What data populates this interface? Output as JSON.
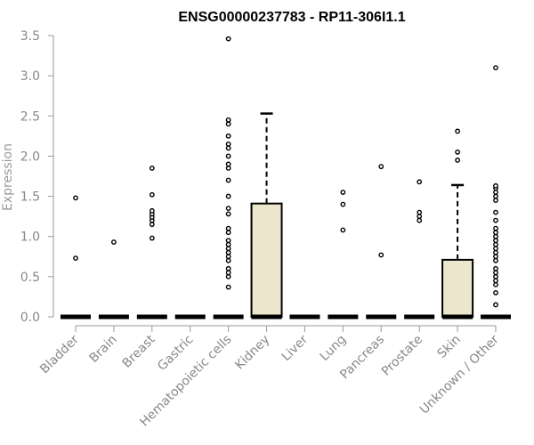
{
  "chart_data": {
    "type": "box",
    "title": "ENSG00000237783 - RP11-306I1.1",
    "ylabel": "Expression",
    "ylim": [
      0,
      3.5
    ],
    "yticks": [
      "0.0",
      "0.5",
      "1.0",
      "1.5",
      "2.0",
      "2.5",
      "3.0",
      "3.5"
    ],
    "grid": false,
    "colors": {
      "box_fill": "#ece6cc",
      "axis": "#999999",
      "tick_label": "#888888"
    },
    "categories": [
      {
        "name": "Bladder",
        "median": 0,
        "q1": 0,
        "q3": 0,
        "whisker_low": 0,
        "whisker_high": 0,
        "outliers": [
          0.73,
          1.48
        ]
      },
      {
        "name": "Brain",
        "median": 0,
        "q1": 0,
        "q3": 0,
        "whisker_low": 0,
        "whisker_high": 0,
        "outliers": [
          0.93
        ]
      },
      {
        "name": "Breast",
        "median": 0,
        "q1": 0,
        "q3": 0,
        "whisker_low": 0,
        "whisker_high": 0,
        "outliers": [
          0.98,
          1.15,
          1.2,
          1.24,
          1.28,
          1.32,
          1.52,
          1.85
        ]
      },
      {
        "name": "Gastric",
        "median": 0,
        "q1": 0,
        "q3": 0,
        "whisker_low": 0,
        "whisker_high": 0,
        "outliers": []
      },
      {
        "name": "Hematopoietic cells",
        "median": 0,
        "q1": 0,
        "q3": 0,
        "whisker_low": 0,
        "whisker_high": 0,
        "outliers": [
          0.37,
          0.5,
          0.55,
          0.6,
          0.7,
          0.75,
          0.8,
          0.85,
          0.9,
          0.95,
          1.05,
          1.1,
          1.28,
          1.35,
          1.5,
          1.7,
          1.85,
          1.9,
          2.0,
          2.1,
          2.15,
          2.25,
          2.4,
          2.45,
          3.46
        ]
      },
      {
        "name": "Kidney",
        "median": 0,
        "q1": 0,
        "q3": 1.41,
        "whisker_low": 0,
        "whisker_high": 2.53,
        "outliers": []
      },
      {
        "name": "Liver",
        "median": 0,
        "q1": 0,
        "q3": 0,
        "whisker_low": 0,
        "whisker_high": 0,
        "outliers": []
      },
      {
        "name": "Lung",
        "median": 0,
        "q1": 0,
        "q3": 0,
        "whisker_low": 0,
        "whisker_high": 0,
        "outliers": [
          1.08,
          1.4,
          1.55
        ]
      },
      {
        "name": "Pancreas",
        "median": 0,
        "q1": 0,
        "q3": 0,
        "whisker_low": 0,
        "whisker_high": 0,
        "outliers": [
          0.77,
          1.87
        ]
      },
      {
        "name": "Prostate",
        "median": 0,
        "q1": 0,
        "q3": 0,
        "whisker_low": 0,
        "whisker_high": 0,
        "outliers": [
          1.2,
          1.25,
          1.3,
          1.68
        ]
      },
      {
        "name": "Skin",
        "median": 0,
        "q1": 0,
        "q3": 0.71,
        "whisker_low": 0,
        "whisker_high": 1.64,
        "outliers": [
          1.95,
          2.05,
          2.31
        ]
      },
      {
        "name": "Unknown / Other",
        "median": 0,
        "q1": 0,
        "q3": 0,
        "whisker_low": 0,
        "whisker_high": 0,
        "outliers": [
          0.15,
          0.3,
          0.4,
          0.45,
          0.5,
          0.55,
          0.6,
          0.7,
          0.75,
          0.8,
          0.85,
          0.9,
          0.95,
          1.0,
          1.05,
          1.1,
          1.2,
          1.3,
          1.45,
          1.5,
          1.55,
          1.6,
          1.63,
          3.1
        ]
      }
    ]
  }
}
